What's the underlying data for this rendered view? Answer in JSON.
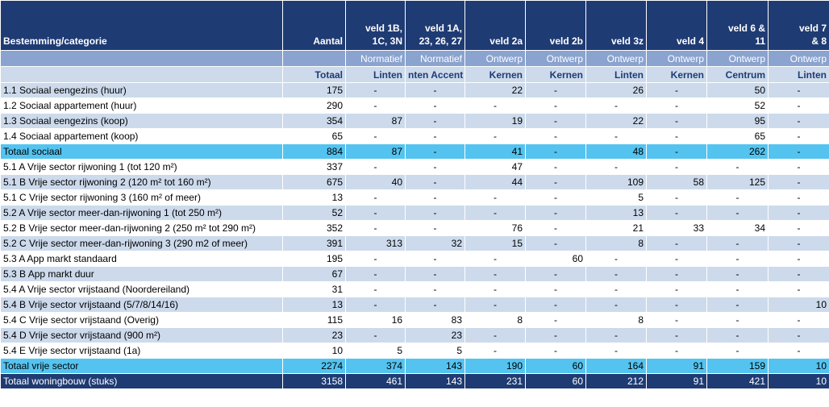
{
  "header": {
    "label": "Bestemming/categorie",
    "columns": [
      "Aantal",
      "veld 1B, 1C, 3N",
      "veld 1A, 23, 26, 27",
      "veld 2a",
      "veld 2b",
      "veld 3z",
      "veld 4",
      "veld 6 & 11",
      "veld 7 & 8"
    ],
    "types": [
      "",
      "Normatief",
      "Normatief",
      "Ontwerp",
      "Ontwerp",
      "Ontwerp",
      "Ontwerp",
      "Ontwerp",
      "Ontwerp"
    ],
    "subheads": [
      "Totaal",
      "Linten",
      "nten Accent",
      "Kernen",
      "Kernen",
      "Linten",
      "Kernen",
      "Centrum",
      "Linten"
    ]
  },
  "rows": [
    {
      "label": "1.1 Sociaal eengezins (huur)",
      "cells": [
        "175",
        "-",
        "-",
        "22",
        "-",
        "26",
        "-",
        "50",
        "-"
      ],
      "style": "odd"
    },
    {
      "label": "1.2 Sociaal appartement (huur)",
      "cells": [
        "290",
        "-",
        "-",
        "-",
        "-",
        "-",
        "-",
        "52",
        "-"
      ],
      "style": "even"
    },
    {
      "label": "1.3 Sociaal eengezins (koop)",
      "cells": [
        "354",
        "87",
        "-",
        "19",
        "-",
        "22",
        "-",
        "95",
        "-"
      ],
      "style": "odd"
    },
    {
      "label": "1.4 Sociaal appartement (koop)",
      "cells": [
        "65",
        "-",
        "-",
        "-",
        "-",
        "-",
        "-",
        "65",
        "-"
      ],
      "style": "even"
    },
    {
      "label": "Totaal sociaal",
      "cells": [
        "884",
        "87",
        "-",
        "41",
        "-",
        "48",
        "-",
        "262",
        "-"
      ],
      "style": "cyan"
    },
    {
      "label": "5.1 A Vrije sector rijwoning 1 (tot 120 m²)",
      "cells": [
        "337",
        "-",
        "-",
        "47",
        "-",
        "-",
        "-",
        "-",
        "-"
      ],
      "style": "even"
    },
    {
      "label": "5.1 B Vrije sector rijwoning 2 (120 m² tot 160 m²)",
      "cells": [
        "675",
        "40",
        "-",
        "44",
        "-",
        "109",
        "58",
        "125",
        "-"
      ],
      "style": "odd"
    },
    {
      "label": "5.1 C Vrije sector rijwoning 3 (160 m² of meer)",
      "cells": [
        "13",
        "-",
        "-",
        "-",
        "-",
        "5",
        "-",
        "-",
        "-"
      ],
      "style": "even"
    },
    {
      "label": "5.2 A Vrije sector meer-dan-rijwoning 1 (tot 250 m²)",
      "cells": [
        "52",
        "-",
        "-",
        "-",
        "-",
        "13",
        "-",
        "-",
        "-"
      ],
      "style": "odd"
    },
    {
      "label": "5.2 B Vrije sector meer-dan-rijwoning 2 (250 m² tot 290 m²)",
      "cells": [
        "352",
        "-",
        "-",
        "76",
        "-",
        "21",
        "33",
        "34",
        "-"
      ],
      "style": "even"
    },
    {
      "label": "5.2 C Vrije sector meer-dan-rijwoning 3 (290 m2 of meer)",
      "cells": [
        "391",
        "313",
        "32",
        "15",
        "-",
        "8",
        "-",
        "-",
        "-"
      ],
      "style": "odd"
    },
    {
      "label": "5.3 A App markt standaard",
      "cells": [
        "195",
        "-",
        "-",
        "-",
        "60",
        "-",
        "-",
        "-",
        "-"
      ],
      "style": "even"
    },
    {
      "label": "5.3 B App markt duur",
      "cells": [
        "67",
        "-",
        "-",
        "-",
        "-",
        "-",
        "-",
        "-",
        "-"
      ],
      "style": "odd"
    },
    {
      "label": "5.4 A Vrije sector vrijstaand (Noordereiland)",
      "cells": [
        "31",
        "-",
        "-",
        "-",
        "-",
        "-",
        "-",
        "-",
        "-"
      ],
      "style": "even"
    },
    {
      "label": "5.4 B Vrije sector vrijstaand (5/7/8/14/16)",
      "cells": [
        "13",
        "-",
        "-",
        "-",
        "-",
        "-",
        "-",
        "-",
        "10"
      ],
      "style": "odd"
    },
    {
      "label": "5.4 C Vrije sector vrijstaand (Overig)",
      "cells": [
        "115",
        "16",
        "83",
        "8",
        "-",
        "8",
        "-",
        "-",
        "-"
      ],
      "style": "even"
    },
    {
      "label": "5.4 D Vrije sector vrijstaand (900 m²)",
      "cells": [
        "23",
        "-",
        "23",
        "-",
        "-",
        "-",
        "-",
        "-",
        "-"
      ],
      "style": "odd"
    },
    {
      "label": "5.4 E Vrije sector vrijstaand (1a)",
      "cells": [
        "10",
        "5",
        "5",
        "-",
        "-",
        "-",
        "-",
        "-",
        "-"
      ],
      "style": "even"
    },
    {
      "label": "Totaal vrije sector",
      "cells": [
        "2274",
        "374",
        "143",
        "190",
        "60",
        "164",
        "91",
        "159",
        "10"
      ],
      "style": "cyan"
    },
    {
      "label": "Totaal woningbouw (stuks)",
      "cells": [
        "3158",
        "461",
        "143",
        "231",
        "60",
        "212",
        "91",
        "421",
        "10"
      ],
      "style": "navy"
    }
  ]
}
